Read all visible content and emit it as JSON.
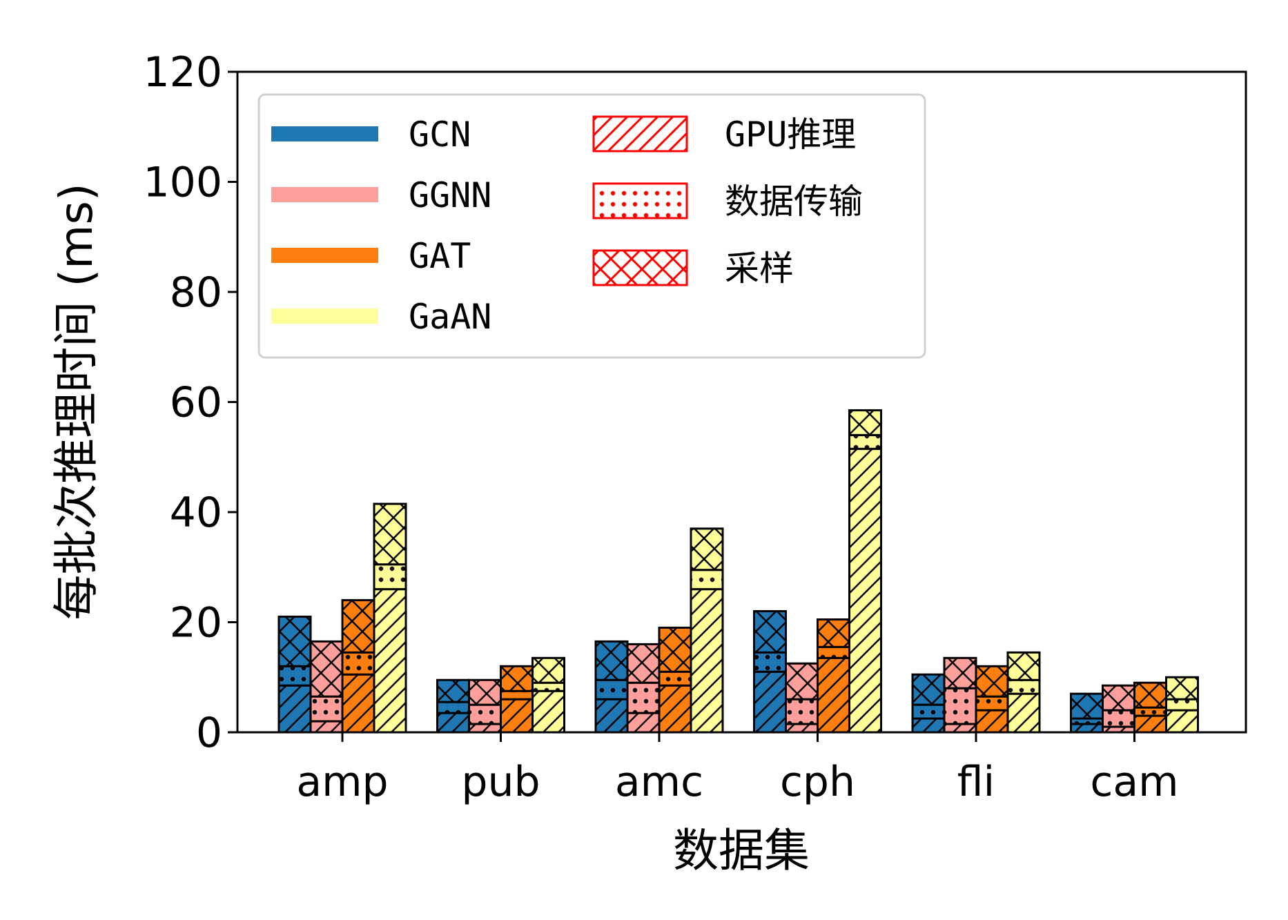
{
  "chart_data": {
    "type": "bar",
    "stacked": true,
    "grouped": true,
    "xlabel": "数据集",
    "ylabel": "每批次推理时间 (ms)",
    "ylim": [
      0,
      120
    ],
    "yticks": [
      "0",
      "20",
      "40",
      "60",
      "80",
      "100",
      "120"
    ],
    "grid": false,
    "legend_position": "top-left",
    "categories": [
      "amp",
      "pub",
      "amc",
      "cph",
      "fli",
      "cam"
    ],
    "models": [
      {
        "name": "GCN",
        "color": "#1f77b4"
      },
      {
        "name": "GGNN",
        "color": "#ff9f9b"
      },
      {
        "name": "GAT",
        "color": "#ff7f0e"
      },
      {
        "name": "GaAN",
        "color": "#ffff99"
      }
    ],
    "phases": [
      {
        "name": "GPU推理",
        "pattern": "diagonal-hatch"
      },
      {
        "name": "数据传输",
        "pattern": "dots"
      },
      {
        "name": "采样",
        "pattern": "cross-hatch"
      }
    ],
    "series": [
      {
        "name": "GCN",
        "values": [
          {
            "GPU推理": 8.5,
            "数据传输": 3.5,
            "采样": 9.0
          },
          {
            "GPU推理": 3.5,
            "数据传输": 2.0,
            "采样": 4.0
          },
          {
            "GPU推理": 6.0,
            "数据传输": 3.5,
            "采样": 7.0
          },
          {
            "GPU推理": 11.0,
            "数据传输": 3.5,
            "采样": 7.5
          },
          {
            "GPU推理": 2.5,
            "数据传输": 2.5,
            "采样": 5.5
          },
          {
            "GPU推理": 1.5,
            "数据传输": 1.0,
            "采样": 4.5
          }
        ]
      },
      {
        "name": "GGNN",
        "values": [
          {
            "GPU推理": 2.0,
            "数据传输": 4.5,
            "采样": 10.0
          },
          {
            "GPU推理": 1.5,
            "数据传输": 3.5,
            "采样": 4.5
          },
          {
            "GPU推理": 3.5,
            "数据传输": 5.5,
            "采样": 7.0
          },
          {
            "GPU推理": 1.5,
            "数据传输": 4.5,
            "采样": 6.5
          },
          {
            "GPU推理": 1.5,
            "数据传输": 6.5,
            "采样": 5.5
          },
          {
            "GPU推理": 1.0,
            "数据传输": 3.0,
            "采样": 4.5
          }
        ]
      },
      {
        "name": "GAT",
        "values": [
          {
            "GPU推理": 10.5,
            "数据传输": 4.0,
            "采样": 9.5
          },
          {
            "GPU推理": 6.0,
            "数据传输": 1.5,
            "采样": 4.5
          },
          {
            "GPU推理": 8.5,
            "数据传输": 2.5,
            "采样": 8.0
          },
          {
            "GPU推理": 13.5,
            "数据传输": 2.0,
            "采样": 5.0
          },
          {
            "GPU推理": 4.0,
            "数据传输": 2.5,
            "采样": 5.5
          },
          {
            "GPU推理": 3.0,
            "数据传输": 1.5,
            "采样": 4.5
          }
        ]
      },
      {
        "name": "GaAN",
        "values": [
          {
            "GPU推理": 26.0,
            "数据传输": 4.5,
            "采样": 11.0
          },
          {
            "GPU推理": 7.5,
            "数据传输": 1.5,
            "采样": 4.5
          },
          {
            "GPU推理": 26.0,
            "数据传输": 3.5,
            "采样": 7.5
          },
          {
            "GPU推理": 51.5,
            "数据传输": 2.5,
            "采样": 4.5
          },
          {
            "GPU推理": 7.0,
            "数据传输": 2.5,
            "采样": 5.0
          },
          {
            "GPU推理": 4.0,
            "数据传输": 2.0,
            "采样": 4.0
          }
        ]
      }
    ]
  }
}
